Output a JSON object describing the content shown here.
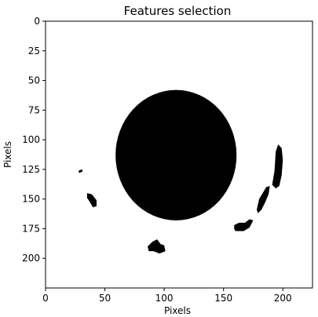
{
  "chart_data": {
    "type": "heatmap",
    "title": "Features selection",
    "xlabel": "Pixels",
    "ylabel": "Pixels",
    "xlim": [
      0,
      225
    ],
    "ylim": [
      225,
      0
    ],
    "xticks": [
      0,
      50,
      100,
      150,
      200
    ],
    "yticks": [
      0,
      25,
      50,
      75,
      100,
      125,
      150,
      175,
      200
    ],
    "colormap": {
      "background": "#ffffff",
      "feature": "#000000"
    },
    "grid": false,
    "features": [
      {
        "shape": "ellipse",
        "cx": 110,
        "cy": 113,
        "rx": 51,
        "ry": 55
      },
      {
        "shape": "blob",
        "points": [
          [
            28,
            126
          ],
          [
            31,
            125
          ],
          [
            31,
            127
          ],
          [
            28,
            128
          ]
        ]
      },
      {
        "shape": "blob",
        "points": [
          [
            35,
            145
          ],
          [
            39,
            146
          ],
          [
            43,
            151
          ],
          [
            43,
            156
          ],
          [
            40,
            157
          ],
          [
            37,
            152
          ],
          [
            35,
            149
          ]
        ]
      },
      {
        "shape": "blob",
        "points": [
          [
            86,
            190
          ],
          [
            90,
            186
          ],
          [
            94,
            184
          ],
          [
            97,
            188
          ],
          [
            100,
            189
          ],
          [
            101,
            194
          ],
          [
            96,
            196
          ],
          [
            91,
            194
          ],
          [
            87,
            194
          ]
        ]
      },
      {
        "shape": "blob",
        "points": [
          [
            159,
            172
          ],
          [
            163,
            170
          ],
          [
            168,
            170
          ],
          [
            172,
            167
          ],
          [
            175,
            168
          ],
          [
            172,
            174
          ],
          [
            167,
            177
          ],
          [
            160,
            177
          ],
          [
            159,
            175
          ]
        ]
      },
      {
        "shape": "blob",
        "points": [
          [
            178,
            159
          ],
          [
            180,
            150
          ],
          [
            183,
            145
          ],
          [
            186,
            140
          ],
          [
            189,
            139
          ],
          [
            188,
            146
          ],
          [
            185,
            153
          ],
          [
            182,
            159
          ],
          [
            179,
            162
          ]
        ]
      },
      {
        "shape": "blob",
        "points": [
          [
            191,
            138
          ],
          [
            193,
            126
          ],
          [
            194,
            110
          ],
          [
            196,
            104
          ],
          [
            199,
            107
          ],
          [
            200,
            117
          ],
          [
            199,
            130
          ],
          [
            197,
            139
          ],
          [
            194,
            141
          ]
        ]
      }
    ]
  }
}
